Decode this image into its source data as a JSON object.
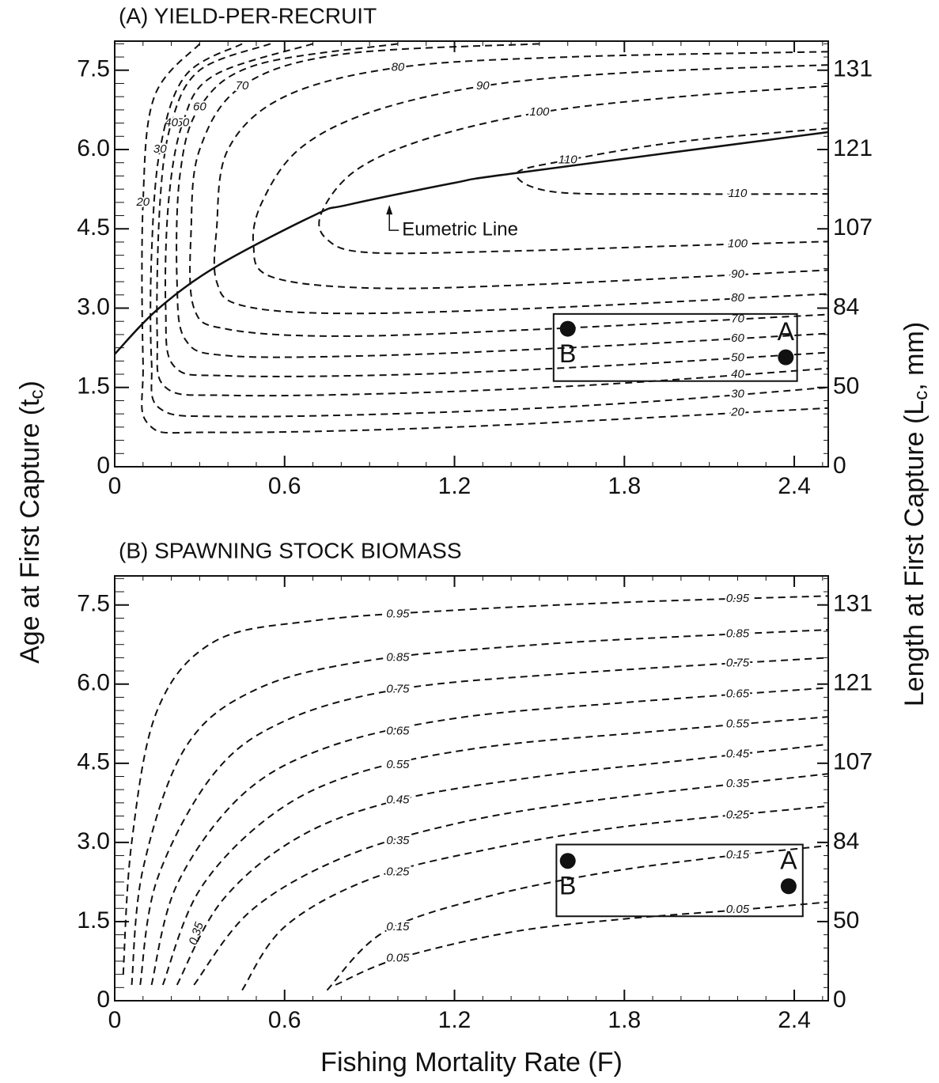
{
  "xlabel": "Fishing Mortality Rate (F)",
  "ylabel": {
    "text": "Age at First Capture (t",
    "sub": "c",
    "end": ")"
  },
  "y2label": {
    "text": "Length at First Capture (L",
    "sub": "c",
    "end": ", mm)"
  },
  "chart_data": [
    {
      "type": "contour",
      "title": "(A) YIELD-PER-RECRUIT",
      "xlim": [
        0,
        2.52
      ],
      "ylim": [
        0,
        8.05
      ],
      "xticks": [
        0,
        0.6,
        1.2,
        1.8,
        2.4
      ],
      "yticks": [
        0,
        1.5,
        {
          "value": 3,
          "label": "3.0"
        },
        4.5,
        {
          "value": 6,
          "label": "6.0"
        },
        7.5
      ],
      "y2ticks": [
        0,
        50,
        84,
        107,
        121,
        131
      ],
      "contours": [
        {
          "level": 110,
          "x": [
            2.52,
            2.0,
            1.6,
            1.42,
            1.55,
            2.0,
            2.52
          ],
          "y": [
            6.4,
            6.15,
            5.8,
            5.55,
            5.2,
            5.16,
            5.16
          ]
        },
        {
          "level": 100,
          "x": [
            2.52,
            2.0,
            1.5,
            1.1,
            0.85,
            0.73,
            0.75,
            0.9,
            1.4,
            2.0,
            2.52
          ],
          "y": [
            7.2,
            7.0,
            6.7,
            6.2,
            5.6,
            4.8,
            4.3,
            4.05,
            4.08,
            4.18,
            4.26
          ]
        },
        {
          "level": 90,
          "x": [
            2.52,
            1.8,
            1.3,
            0.9,
            0.65,
            0.52,
            0.49,
            0.55,
            0.9,
            1.5,
            2.52
          ],
          "y": [
            7.6,
            7.45,
            7.2,
            6.7,
            6.0,
            5.0,
            4.2,
            3.6,
            3.38,
            3.45,
            3.72
          ]
        },
        {
          "level": 80,
          "x": [
            2.52,
            1.6,
            1.0,
            0.6,
            0.4,
            0.36,
            0.36,
            0.45,
            0.8,
            1.5,
            2.52
          ],
          "y": [
            7.85,
            7.75,
            7.55,
            7.0,
            6.0,
            4.5,
            3.5,
            3.05,
            2.9,
            3.0,
            3.27
          ]
        },
        {
          "level": 70,
          "x": [
            1.5,
            0.8,
            0.45,
            0.3,
            0.27,
            0.28,
            0.4,
            0.8,
            1.5,
            2.52
          ],
          "y": [
            8.0,
            7.8,
            7.2,
            6.0,
            4.5,
            3.0,
            2.6,
            2.47,
            2.6,
            2.88
          ]
        },
        {
          "level": 60,
          "x": [
            1.0,
            0.5,
            0.3,
            0.23,
            0.22,
            0.25,
            0.4,
            0.9,
            1.6,
            2.52
          ],
          "y": [
            8.0,
            7.6,
            6.8,
            5.5,
            3.5,
            2.4,
            2.1,
            2.1,
            2.25,
            2.52
          ]
        },
        {
          "level": 50,
          "x": [
            0.7,
            0.35,
            0.24,
            0.19,
            0.18,
            0.21,
            0.4,
            1.0,
            1.7,
            2.52
          ],
          "y": [
            8.0,
            7.4,
            6.5,
            5.0,
            3.0,
            1.9,
            1.72,
            1.74,
            1.9,
            2.16
          ]
        },
        {
          "level": 40,
          "x": [
            0.55,
            0.3,
            0.2,
            0.16,
            0.15,
            0.18,
            0.4,
            1.0,
            1.7,
            2.52
          ],
          "y": [
            8.0,
            7.5,
            6.5,
            5.0,
            2.5,
            1.5,
            1.35,
            1.39,
            1.55,
            1.86
          ]
        },
        {
          "level": 30,
          "x": [
            0.45,
            0.25,
            0.16,
            0.13,
            0.13,
            0.16,
            0.4,
            1.1,
            1.8,
            2.52
          ],
          "y": [
            8.0,
            7.4,
            6.0,
            4.0,
            2.0,
            1.1,
            0.95,
            1.02,
            1.2,
            1.5
          ]
        },
        {
          "level": 20,
          "x": [
            0.3,
            0.14,
            0.1,
            0.1,
            0.12,
            0.35,
            1.2,
            2.52
          ],
          "y": [
            8.0,
            7.0,
            5.0,
            2.0,
            0.8,
            0.65,
            0.75,
            1.11
          ]
        }
      ],
      "eumetric": {
        "x": [
          0,
          0.15,
          0.36,
          0.71,
          0.82,
          1.2,
          1.41,
          2.52
        ],
        "y": [
          2.13,
          2.97,
          3.79,
          4.77,
          4.95,
          5.37,
          5.55,
          6.33
        ]
      },
      "annotations": [
        {
          "text": "Eumetric Line",
          "x": 0.97,
          "y": 4.95
        }
      ],
      "box": {
        "x": [
          1.55,
          2.41
        ],
        "y": [
          1.62,
          2.89
        ]
      },
      "points": [
        {
          "label": "B",
          "x": 1.6,
          "y": 2.61
        },
        {
          "label": "A",
          "x": 2.37,
          "y": 2.07
        }
      ]
    },
    {
      "type": "contour",
      "title": "(B) SPAWNING STOCK BIOMASS",
      "xlim": [
        0,
        2.52
      ],
      "ylim": [
        0,
        8.05
      ],
      "xticks": [
        0,
        0.6,
        1.2,
        1.8,
        2.4
      ],
      "yticks": [
        0,
        1.5,
        {
          "value": 3,
          "label": "3.0"
        },
        4.5,
        {
          "value": 6,
          "label": "6.0"
        },
        7.5
      ],
      "y2ticks": [
        0,
        50,
        84,
        107,
        121,
        131
      ],
      "contours": [
        {
          "level": 0.95,
          "x": [
            0.03,
            0.06,
            0.15,
            0.35,
            0.7,
            1.2,
            1.8,
            2.52
          ],
          "y": [
            0.5,
            3,
            5.5,
            6.8,
            7.2,
            7.4,
            7.55,
            7.67
          ]
        },
        {
          "level": 0.85,
          "x": [
            0.06,
            0.1,
            0.25,
            0.5,
            0.9,
            1.5,
            2.0,
            2.52
          ],
          "y": [
            0.3,
            2.5,
            4.8,
            5.9,
            6.45,
            6.75,
            6.9,
            7.03
          ]
        },
        {
          "level": 0.75,
          "x": [
            0.09,
            0.15,
            0.35,
            0.6,
            1.0,
            1.6,
            2.52
          ],
          "y": [
            0.3,
            2.3,
            4.3,
            5.3,
            5.9,
            6.2,
            6.5
          ]
        },
        {
          "level": 0.65,
          "x": [
            0.13,
            0.22,
            0.45,
            0.75,
            1.2,
            1.8,
            2.52
          ],
          "y": [
            0.3,
            2.2,
            3.9,
            4.8,
            5.35,
            5.65,
            5.93
          ]
        },
        {
          "level": 0.55,
          "x": [
            0.17,
            0.3,
            0.55,
            0.85,
            1.3,
            1.9,
            2.52
          ],
          "y": [
            0.3,
            2.1,
            3.5,
            4.3,
            4.8,
            5.1,
            5.38
          ]
        },
        {
          "level": 0.45,
          "x": [
            0.22,
            0.38,
            0.65,
            1.0,
            1.5,
            2.0,
            2.52
          ],
          "y": [
            0.3,
            1.9,
            3.1,
            3.8,
            4.25,
            4.55,
            4.86
          ]
        },
        {
          "level": 0.35,
          "x": [
            0.28,
            0.48,
            0.8,
            1.2,
            1.7,
            2.52
          ],
          "y": [
            0.3,
            1.7,
            2.7,
            3.35,
            3.8,
            4.3
          ]
        },
        {
          "level": 0.25,
          "x": [
            0.45,
            0.6,
            0.9,
            1.3,
            1.8,
            2.52
          ],
          "y": [
            0.2,
            1.4,
            2.3,
            2.85,
            3.3,
            3.69
          ]
        },
        {
          "level": 0.15,
          "x": [
            0.75,
            0.95,
            1.3,
            1.7,
            2.1,
            2.52
          ],
          "y": [
            0.2,
            1.3,
            1.95,
            2.4,
            2.7,
            2.94
          ]
        },
        {
          "level": 0.05,
          "x": [
            0.78,
            1.0,
            1.4,
            1.8,
            2.2,
            2.52
          ],
          "y": [
            0.3,
            0.8,
            1.3,
            1.55,
            1.72,
            1.87
          ]
        }
      ],
      "annotations": [
        {
          "text": "0.35",
          "x": 0.29,
          "y": 1.27
        }
      ],
      "box": {
        "x": [
          1.56,
          2.43
        ],
        "y": [
          1.6,
          2.96
        ]
      },
      "points": [
        {
          "label": "B",
          "x": 1.6,
          "y": 2.65
        },
        {
          "label": "A",
          "x": 2.38,
          "y": 2.17
        }
      ]
    }
  ]
}
